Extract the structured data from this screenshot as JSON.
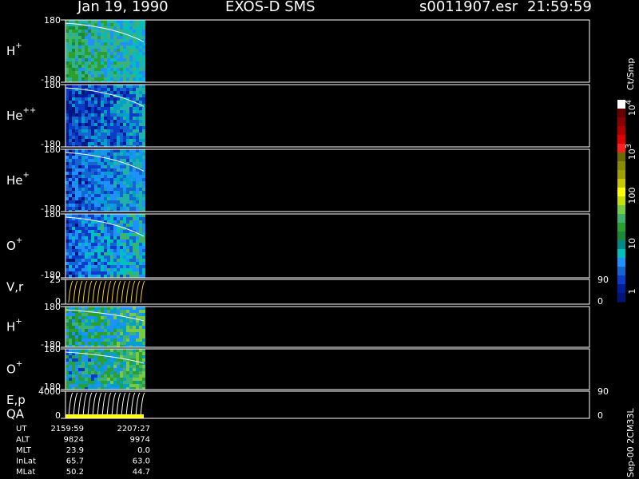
{
  "header": {
    "date": "Jan 19, 1990",
    "instrument": "EXOS-D SMS",
    "file": "s0011907.esr",
    "time": "21:59:59"
  },
  "panels": [
    {
      "label": "H",
      "sup": "+",
      "top": "180",
      "bottom": "-180"
    },
    {
      "label": "He",
      "sup": "++",
      "top": "180",
      "bottom": "-180"
    },
    {
      "label": "He",
      "sup": "+",
      "top": "180",
      "bottom": "-180"
    },
    {
      "label": "O",
      "sup": "+",
      "top": "180",
      "bottom": "-180"
    },
    {
      "label": "V,r",
      "top": "25",
      "bottom": "0",
      "right_top": "90",
      "right_bottom": "0"
    },
    {
      "label": "H",
      "sup": "+",
      "top": "180",
      "bottom": "-180"
    },
    {
      "label": "O",
      "sup": "+",
      "top": "180",
      "bottom": "-180"
    },
    {
      "label": "E,p",
      "label2": "QA",
      "top": "4000",
      "bottom": "0",
      "right_top": "90",
      "right_bottom": "0"
    }
  ],
  "colorbar": {
    "unit": "Ct/Smp",
    "labels": [
      {
        "base": "10",
        "exp": "4"
      },
      {
        "base": "10",
        "exp": "3"
      },
      {
        "base": "100"
      },
      {
        "base": "10"
      },
      {
        "base": "1"
      }
    ]
  },
  "footer": {
    "rows": [
      [
        "UT",
        "2159:59",
        "2207:27"
      ],
      [
        "ALT",
        "9824",
        "9974"
      ],
      [
        "MLT",
        "23.9",
        "0.0"
      ],
      [
        "InLat",
        "65.7",
        "63.0"
      ],
      [
        "MLat",
        "50.2",
        "44.7"
      ]
    ]
  },
  "side_note": "Sep-00 2CM33L"
}
